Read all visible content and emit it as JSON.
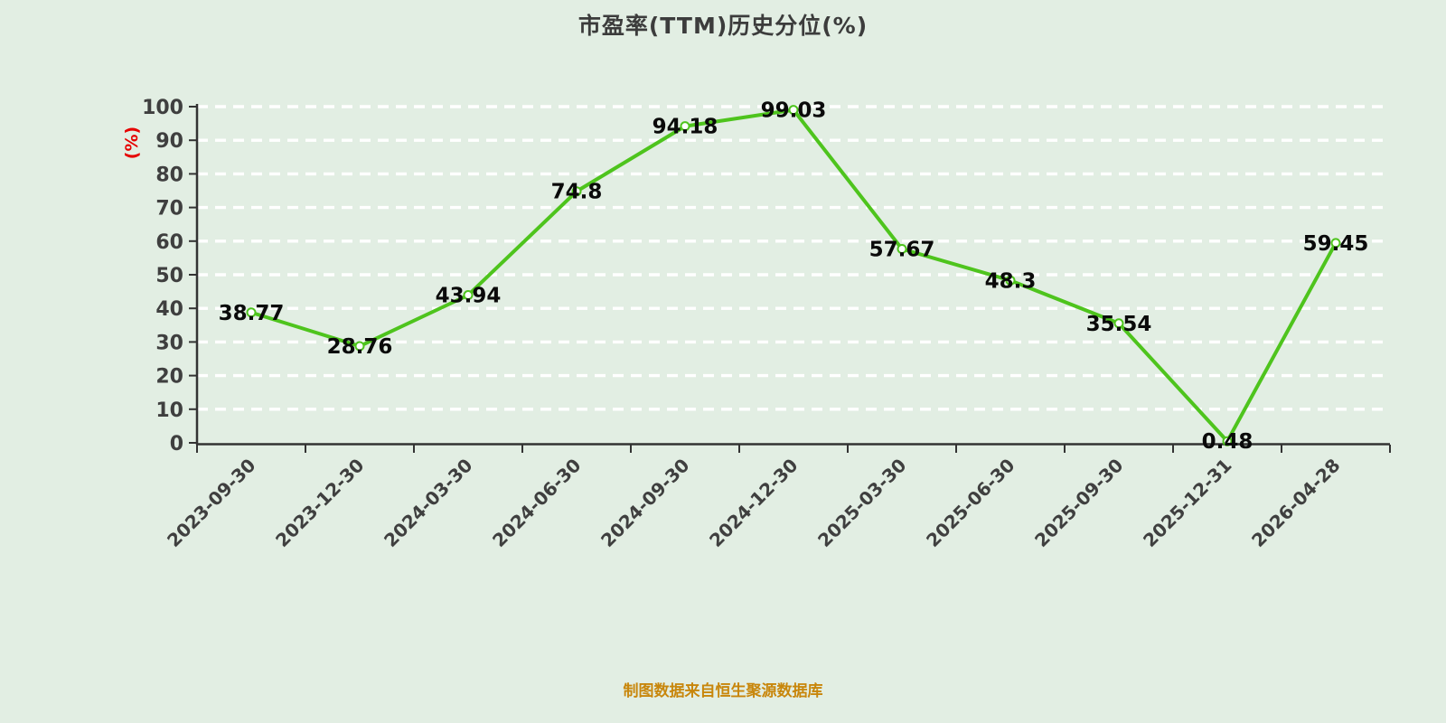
{
  "title": "市盈率(TTM)历史分位(%)",
  "footer": {
    "source_note": "制图数据来自恒生聚源数据库"
  },
  "chart_data": {
    "type": "line",
    "title": "市盈率(TTM)历史分位(%)",
    "categories": [
      "2023-09-30",
      "2023-12-30",
      "2024-03-30",
      "2024-06-30",
      "2024-09-30",
      "2024-12-30",
      "2025-03-30",
      "2025-06-30",
      "2025-09-30",
      "2025-12-31",
      "2026-04-28"
    ],
    "values": [
      38.77,
      28.76,
      43.94,
      74.8,
      94.18,
      99.03,
      57.67,
      48.3,
      35.54,
      0.48,
      59.45
    ],
    "xlabel": "",
    "ylabel": "(%)",
    "ylim": [
      0,
      100
    ],
    "ytick_step": 10,
    "grid": "horizontal-dashed-white",
    "legend": "none",
    "data_labels": "centered-on-points",
    "x_label_rotation": -45,
    "colors": {
      "background": "#e2eee3",
      "line": "#4ec41d",
      "point_fill": "#ffffff",
      "grid": "#ffffff",
      "axis": "#333333",
      "tick_label": "#3f3f3f",
      "data_label": "#0a0a0a",
      "ylabel_color": "#e60000",
      "title_color": "#3c3c3c",
      "footer_color": "#c8860b"
    }
  }
}
